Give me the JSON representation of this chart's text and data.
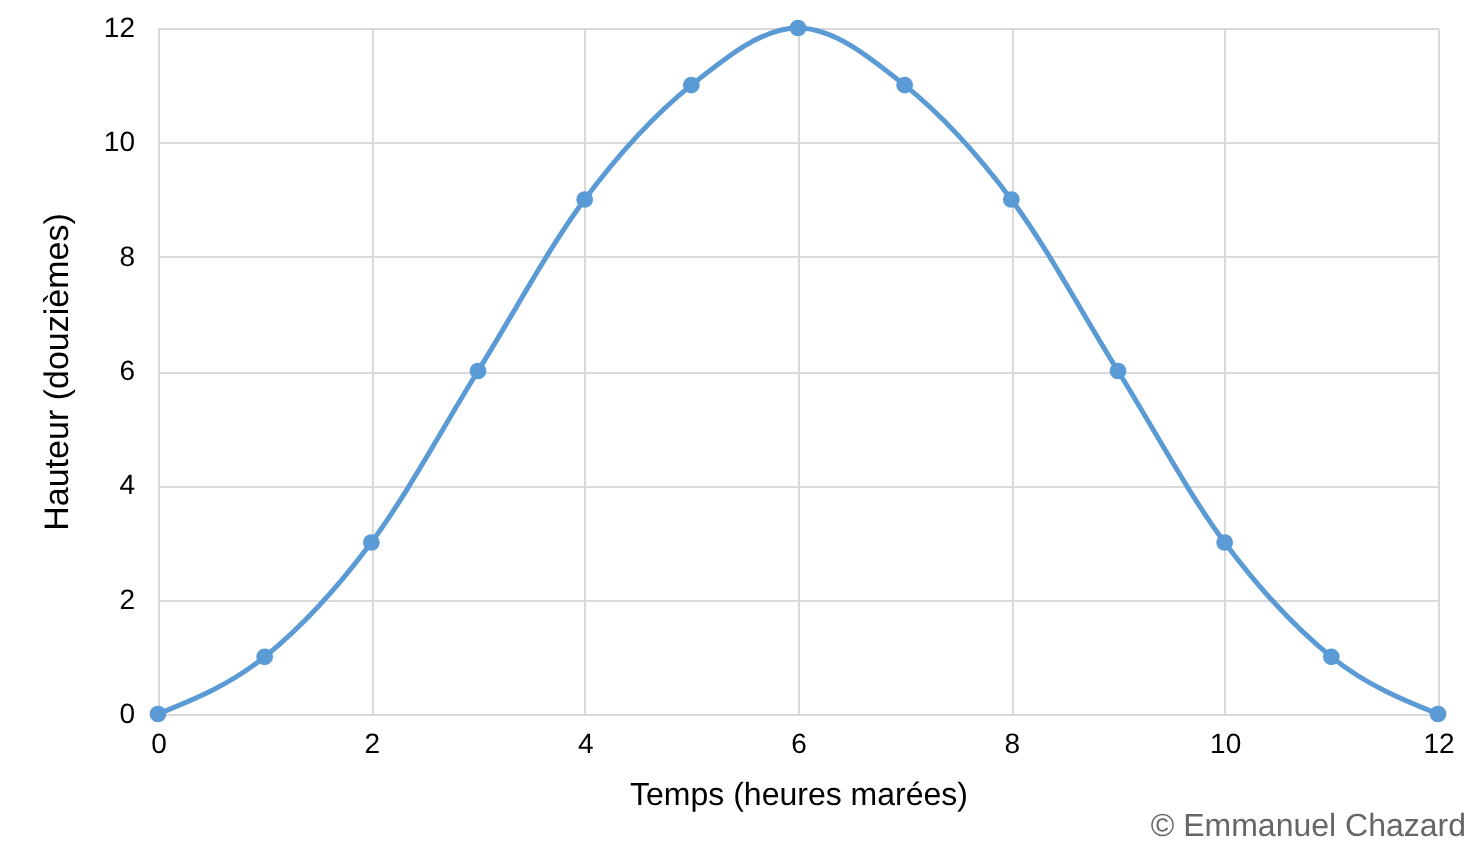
{
  "chart_data": {
    "type": "line",
    "xlabel": "Temps (heures marées)",
    "ylabel": "Hauteur (douzièmes)",
    "x": [
      0,
      1,
      2,
      3,
      4,
      5,
      6,
      7,
      8,
      9,
      10,
      11,
      12
    ],
    "series": [
      {
        "color": "#5b9bd5",
        "values": [
          0,
          1,
          3,
          6,
          9,
          11,
          12,
          11,
          9,
          6,
          3,
          1,
          0
        ]
      }
    ],
    "xlim": [
      0,
      12
    ],
    "xticks": [
      0,
      2,
      4,
      6,
      8,
      10,
      12
    ],
    "ylim": [
      0,
      12
    ],
    "yticks": [
      0,
      2,
      4,
      6,
      8,
      10,
      12
    ],
    "grid": true,
    "marker": "circle",
    "line_style": "solid",
    "annotations": [
      "© Emmanuel Chazard"
    ]
  }
}
